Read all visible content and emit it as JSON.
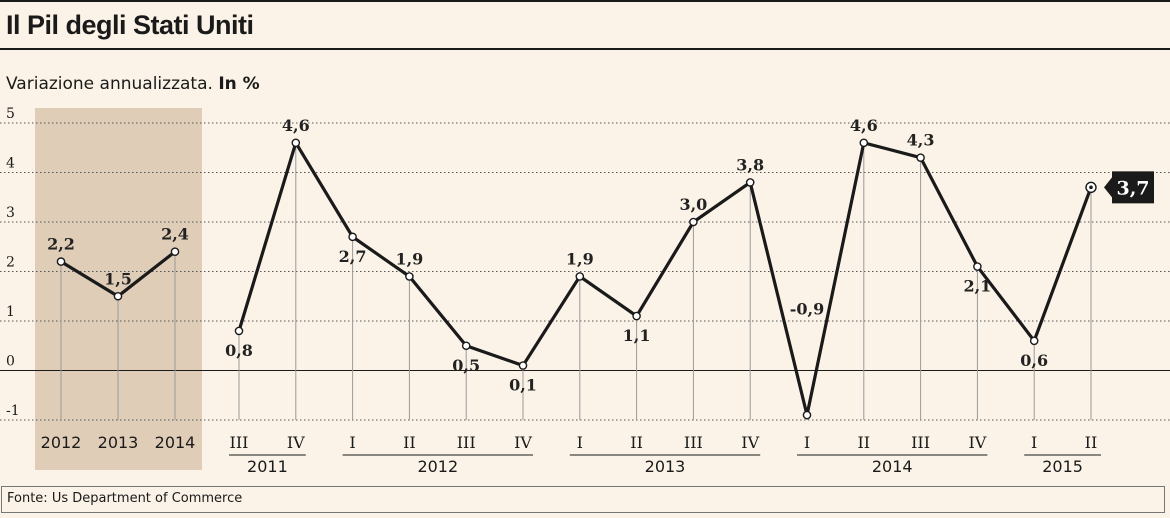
{
  "title": "Il Pil degli Stati Uniti",
  "subtitle": "Variazione annualizzata.",
  "subtitle_unit": "In %",
  "source": "Fonte: Us Department of Commerce",
  "colors": {
    "line": "#1a1a1a",
    "background": "#fbf3e7",
    "shade": "#dfcdb8",
    "callout": "#1a1a1a"
  },
  "chart_data": {
    "type": "line",
    "ylim": [
      -1,
      5
    ],
    "yticks": [
      -1,
      0,
      1,
      2,
      3,
      4,
      5
    ],
    "ytick_labels": [
      "-1",
      "0",
      "1",
      "2",
      "3",
      "4",
      "5"
    ],
    "grid": true,
    "annual": {
      "categories": [
        "2012",
        "2013",
        "2014"
      ],
      "values": [
        2.2,
        1.5,
        2.4
      ],
      "labels": [
        "2,2",
        "1,5",
        "2,4"
      ]
    },
    "quarterly": {
      "categories": [
        "III",
        "IV",
        "I",
        "II",
        "III",
        "IV",
        "I",
        "II",
        "III",
        "IV",
        "I",
        "II",
        "III",
        "IV",
        "I",
        "II"
      ],
      "values": [
        0.8,
        4.6,
        2.7,
        1.9,
        0.5,
        0.1,
        1.9,
        1.1,
        3.0,
        3.8,
        -0.9,
        4.6,
        4.3,
        2.1,
        0.6,
        3.7
      ],
      "labels": [
        "0,8",
        "4,6",
        "2,7",
        "1,9",
        "0,5",
        "0,1",
        "1,9",
        "1,1",
        "3,0",
        "3,8",
        "-0,9",
        "4,6",
        "4,3",
        "2,1",
        "0,6",
        "3,7"
      ],
      "year_groups": [
        {
          "label": "2011",
          "start": 0,
          "end": 1
        },
        {
          "label": "2012",
          "start": 2,
          "end": 5
        },
        {
          "label": "2013",
          "start": 6,
          "end": 9
        },
        {
          "label": "2014",
          "start": 10,
          "end": 13
        },
        {
          "label": "2015",
          "start": 14,
          "end": 15
        }
      ]
    }
  }
}
